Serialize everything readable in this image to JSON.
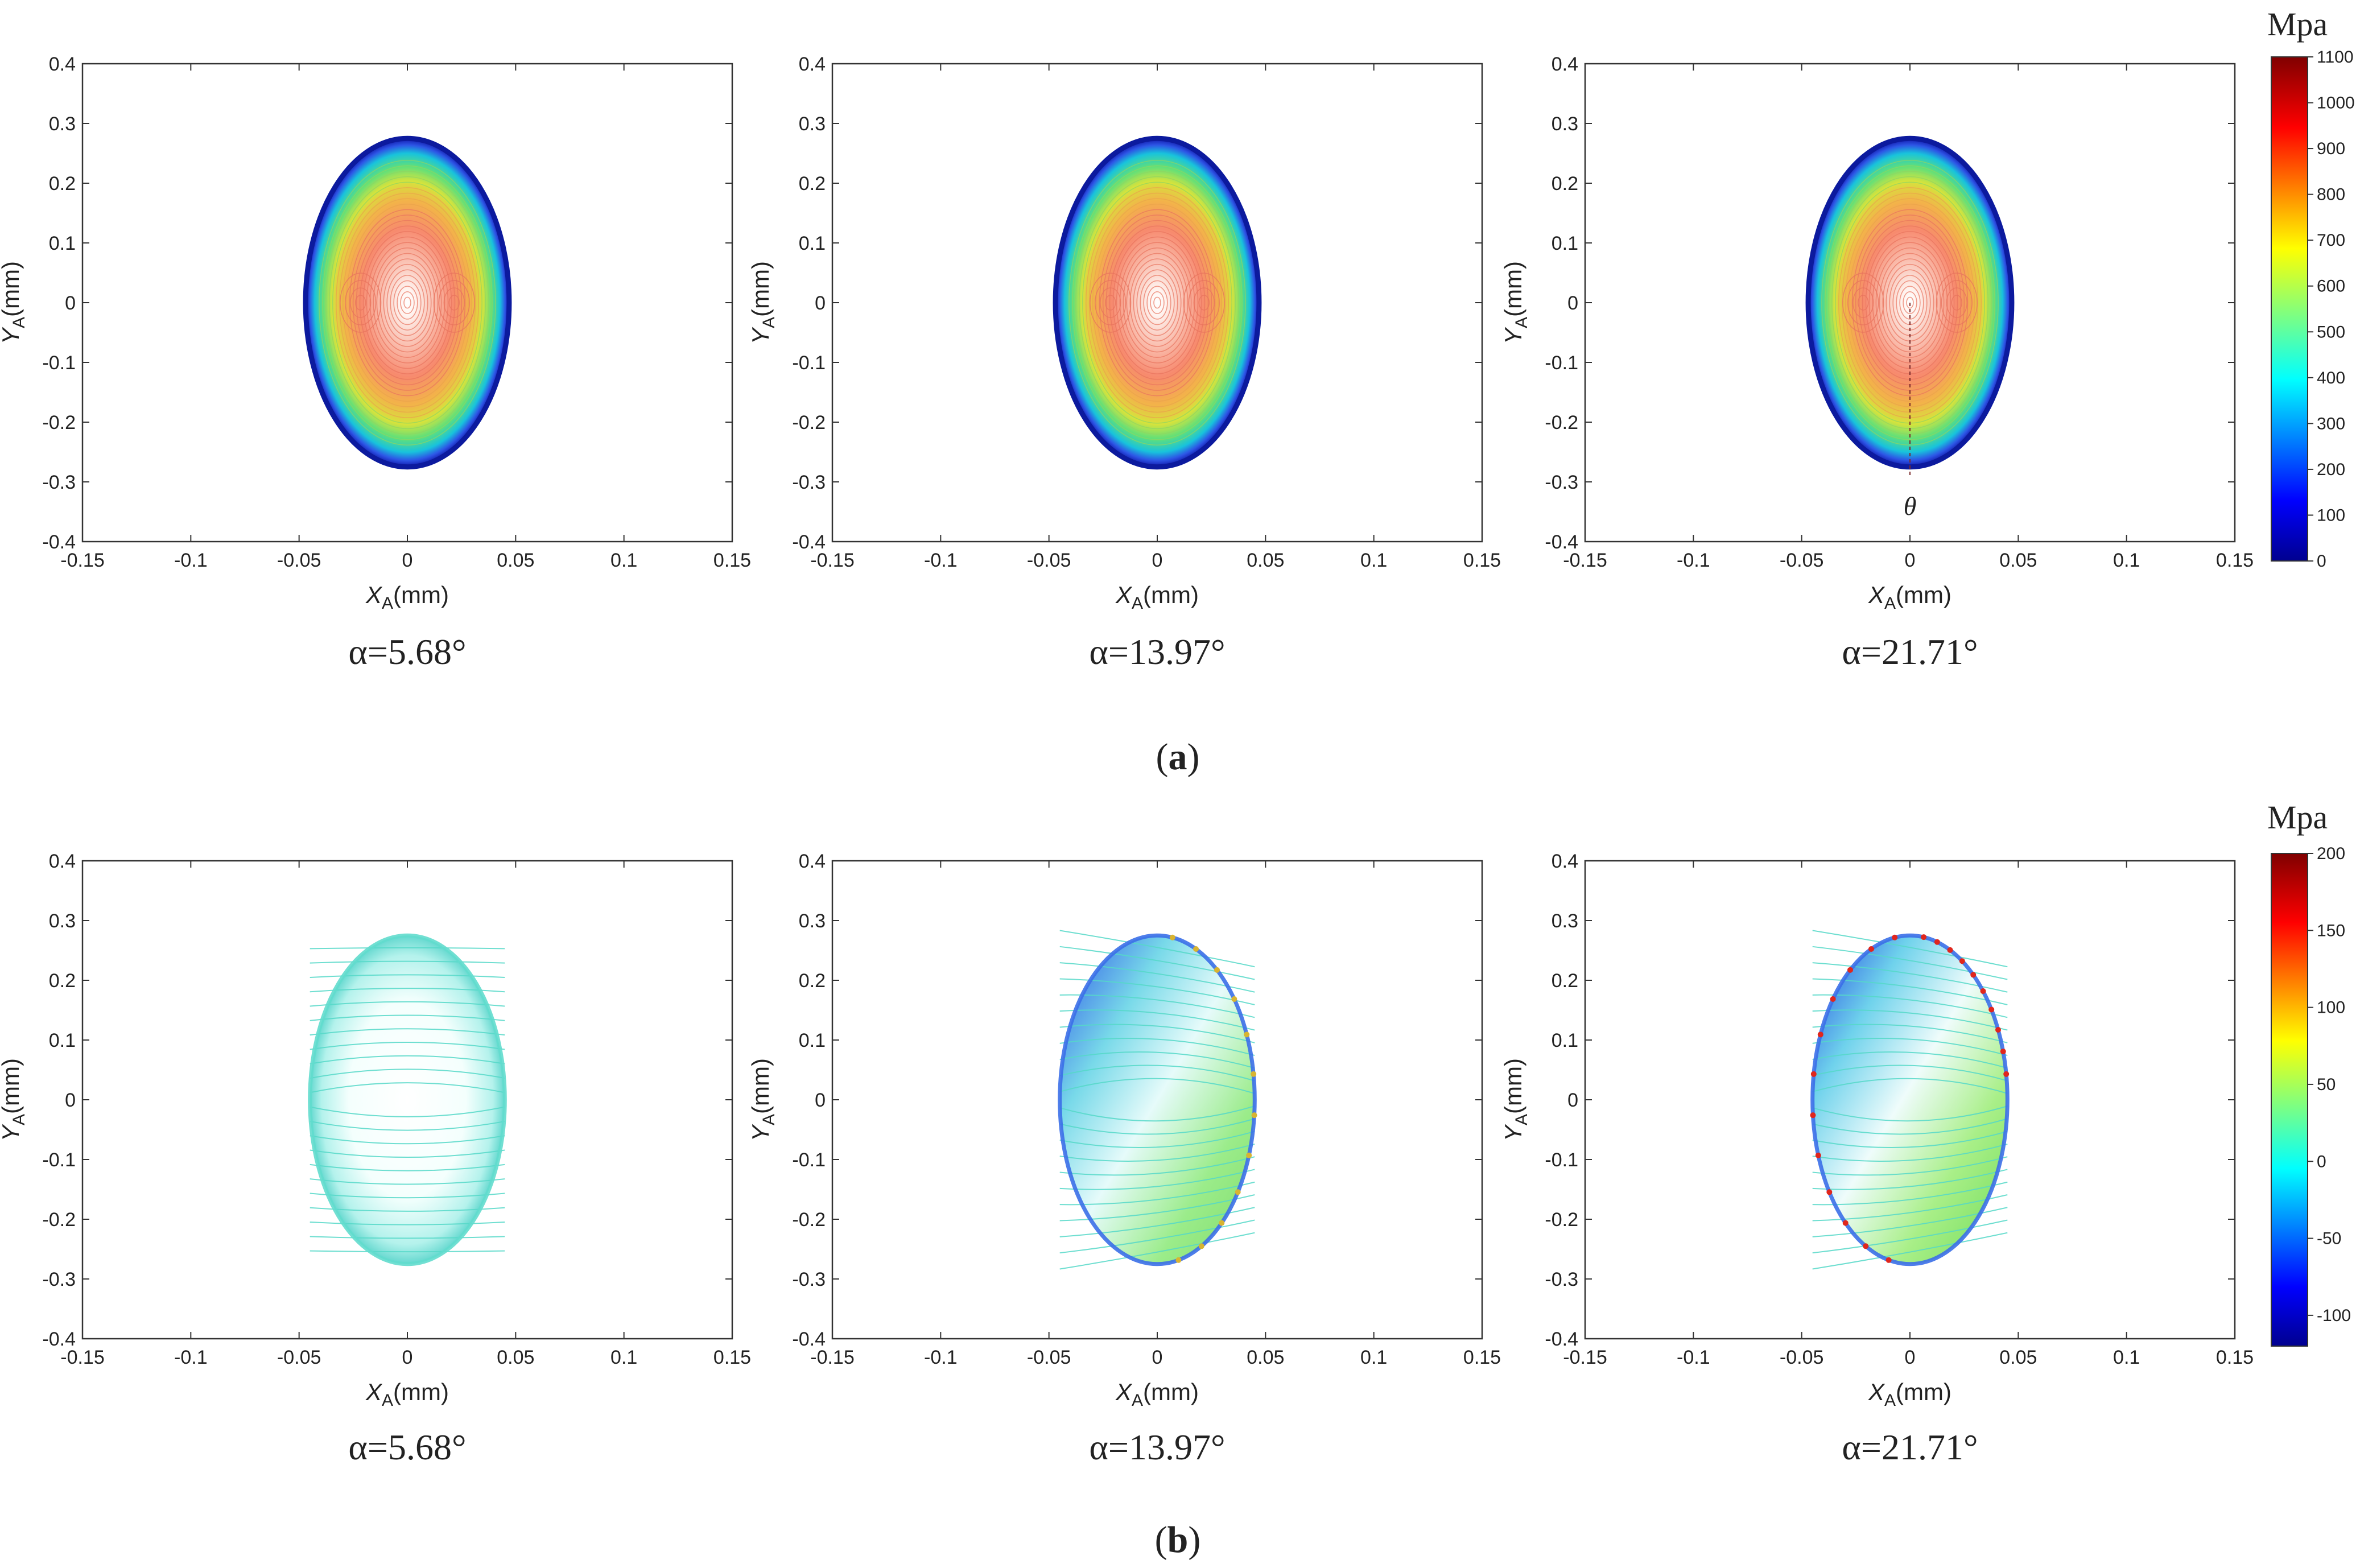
{
  "figure": {
    "rows": [
      {
        "label_open": "(",
        "label_letter": "a",
        "label_close": ")",
        "colorbar": {
          "unit": "Mpa",
          "range": [
            0,
            1100
          ],
          "ticks": [
            "1100",
            "1000",
            "900",
            "800",
            "700",
            "600",
            "500",
            "400",
            "300",
            "200",
            "100",
            "0"
          ]
        }
      },
      {
        "label_open": "(",
        "label_letter": "b",
        "label_close": ")",
        "colorbar": {
          "unit": "Mpa",
          "range": [
            -120,
            200
          ],
          "ticks": [
            "200",
            "150",
            "100",
            "50",
            "0",
            "-50",
            "-100"
          ]
        }
      }
    ],
    "theta_label": "θ"
  },
  "chart_data": [
    {
      "type": "heatmap",
      "row": "a",
      "alpha_label": "α=5.68°",
      "xlabel_main": "X",
      "xlabel_sub": "A",
      "xlabel_unit": "(mm)",
      "ylabel_main": "Y",
      "ylabel_sub": "A",
      "ylabel_unit": "(mm)",
      "xlim": [
        -0.15,
        0.15
      ],
      "ylim": [
        -0.4,
        0.4
      ],
      "xticks": [
        "-0.15",
        "-0.1",
        "-0.05",
        "0",
        "0.05",
        "0.1",
        "0.15"
      ],
      "yticks": [
        "0.4",
        "0.3",
        "0.2",
        "0.1",
        "0",
        "-0.1",
        "-0.2",
        "-0.3",
        "-0.4"
      ],
      "contact_ellipse": {
        "semi_axis_x_mm": 0.047,
        "semi_axis_y_mm": 0.275
      },
      "value_range_mpa": [
        0,
        1100
      ]
    },
    {
      "type": "heatmap",
      "row": "a",
      "alpha_label": "α=13.97°",
      "xlabel_main": "X",
      "xlabel_sub": "A",
      "xlabel_unit": "(mm)",
      "ylabel_main": "Y",
      "ylabel_sub": "A",
      "ylabel_unit": "(mm)",
      "xlim": [
        -0.15,
        0.15
      ],
      "ylim": [
        -0.4,
        0.4
      ],
      "xticks": [
        "-0.15",
        "-0.1",
        "-0.05",
        "0",
        "0.05",
        "0.1",
        "0.15"
      ],
      "yticks": [
        "0.4",
        "0.3",
        "0.2",
        "0.1",
        "0",
        "-0.1",
        "-0.2",
        "-0.3",
        "-0.4"
      ],
      "contact_ellipse": {
        "semi_axis_x_mm": 0.047,
        "semi_axis_y_mm": 0.275
      },
      "value_range_mpa": [
        0,
        1100
      ]
    },
    {
      "type": "heatmap",
      "row": "a",
      "alpha_label": "α=21.71°",
      "xlabel_main": "X",
      "xlabel_sub": "A",
      "xlabel_unit": "(mm)",
      "ylabel_main": "Y",
      "ylabel_sub": "A",
      "ylabel_unit": "(mm)",
      "xlim": [
        -0.15,
        0.15
      ],
      "ylim": [
        -0.4,
        0.4
      ],
      "xticks": [
        "-0.15",
        "-0.1",
        "-0.05",
        "0",
        "0.05",
        "0.1",
        "0.15"
      ],
      "yticks": [
        "0.4",
        "0.3",
        "0.2",
        "0.1",
        "0",
        "-0.1",
        "-0.2",
        "-0.3",
        "-0.4"
      ],
      "contact_ellipse": {
        "semi_axis_x_mm": 0.047,
        "semi_axis_y_mm": 0.275
      },
      "value_range_mpa": [
        0,
        1100
      ]
    },
    {
      "type": "heatmap",
      "row": "b",
      "alpha_label": "α=5.68°",
      "xlabel_main": "X",
      "xlabel_sub": "A",
      "xlabel_unit": "(mm)",
      "ylabel_main": "Y",
      "ylabel_sub": "A",
      "ylabel_unit": "(mm)",
      "xlim": [
        -0.15,
        0.15
      ],
      "ylim": [
        -0.4,
        0.4
      ],
      "xticks": [
        "-0.15",
        "-0.1",
        "-0.05",
        "0",
        "0.05",
        "0.1",
        "0.15"
      ],
      "yticks": [
        "0.4",
        "0.3",
        "0.2",
        "0.1",
        "0",
        "-0.1",
        "-0.2",
        "-0.3",
        "-0.4"
      ],
      "contact_ellipse": {
        "semi_axis_x_mm": 0.045,
        "semi_axis_y_mm": 0.275
      },
      "value_range_mpa": [
        -120,
        200
      ]
    },
    {
      "type": "heatmap",
      "row": "b",
      "alpha_label": "α=13.97°",
      "xlabel_main": "X",
      "xlabel_sub": "A",
      "xlabel_unit": "(mm)",
      "ylabel_main": "Y",
      "ylabel_sub": "A",
      "ylabel_unit": "(mm)",
      "xlim": [
        -0.15,
        0.15
      ],
      "ylim": [
        -0.4,
        0.4
      ],
      "xticks": [
        "-0.15",
        "-0.1",
        "-0.05",
        "0",
        "0.05",
        "0.1",
        "0.15"
      ],
      "yticks": [
        "0.4",
        "0.3",
        "0.2",
        "0.1",
        "0",
        "-0.1",
        "-0.2",
        "-0.3",
        "-0.4"
      ],
      "contact_ellipse": {
        "semi_axis_x_mm": 0.045,
        "semi_axis_y_mm": 0.275
      },
      "value_range_mpa": [
        -120,
        200
      ]
    },
    {
      "type": "heatmap",
      "row": "b",
      "alpha_label": "α=21.71°",
      "xlabel_main": "X",
      "xlabel_sub": "A",
      "xlabel_unit": "(mm)",
      "ylabel_main": "Y",
      "ylabel_sub": "A",
      "ylabel_unit": "(mm)",
      "xlim": [
        -0.15,
        0.15
      ],
      "ylim": [
        -0.4,
        0.4
      ],
      "xticks": [
        "-0.15",
        "-0.1",
        "-0.05",
        "0",
        "0.05",
        "0.1",
        "0.15"
      ],
      "yticks": [
        "0.4",
        "0.3",
        "0.2",
        "0.1",
        "0",
        "-0.1",
        "-0.2",
        "-0.3",
        "-0.4"
      ],
      "contact_ellipse": {
        "semi_axis_x_mm": 0.045,
        "semi_axis_y_mm": 0.275
      },
      "value_range_mpa": [
        -120,
        200
      ]
    }
  ]
}
